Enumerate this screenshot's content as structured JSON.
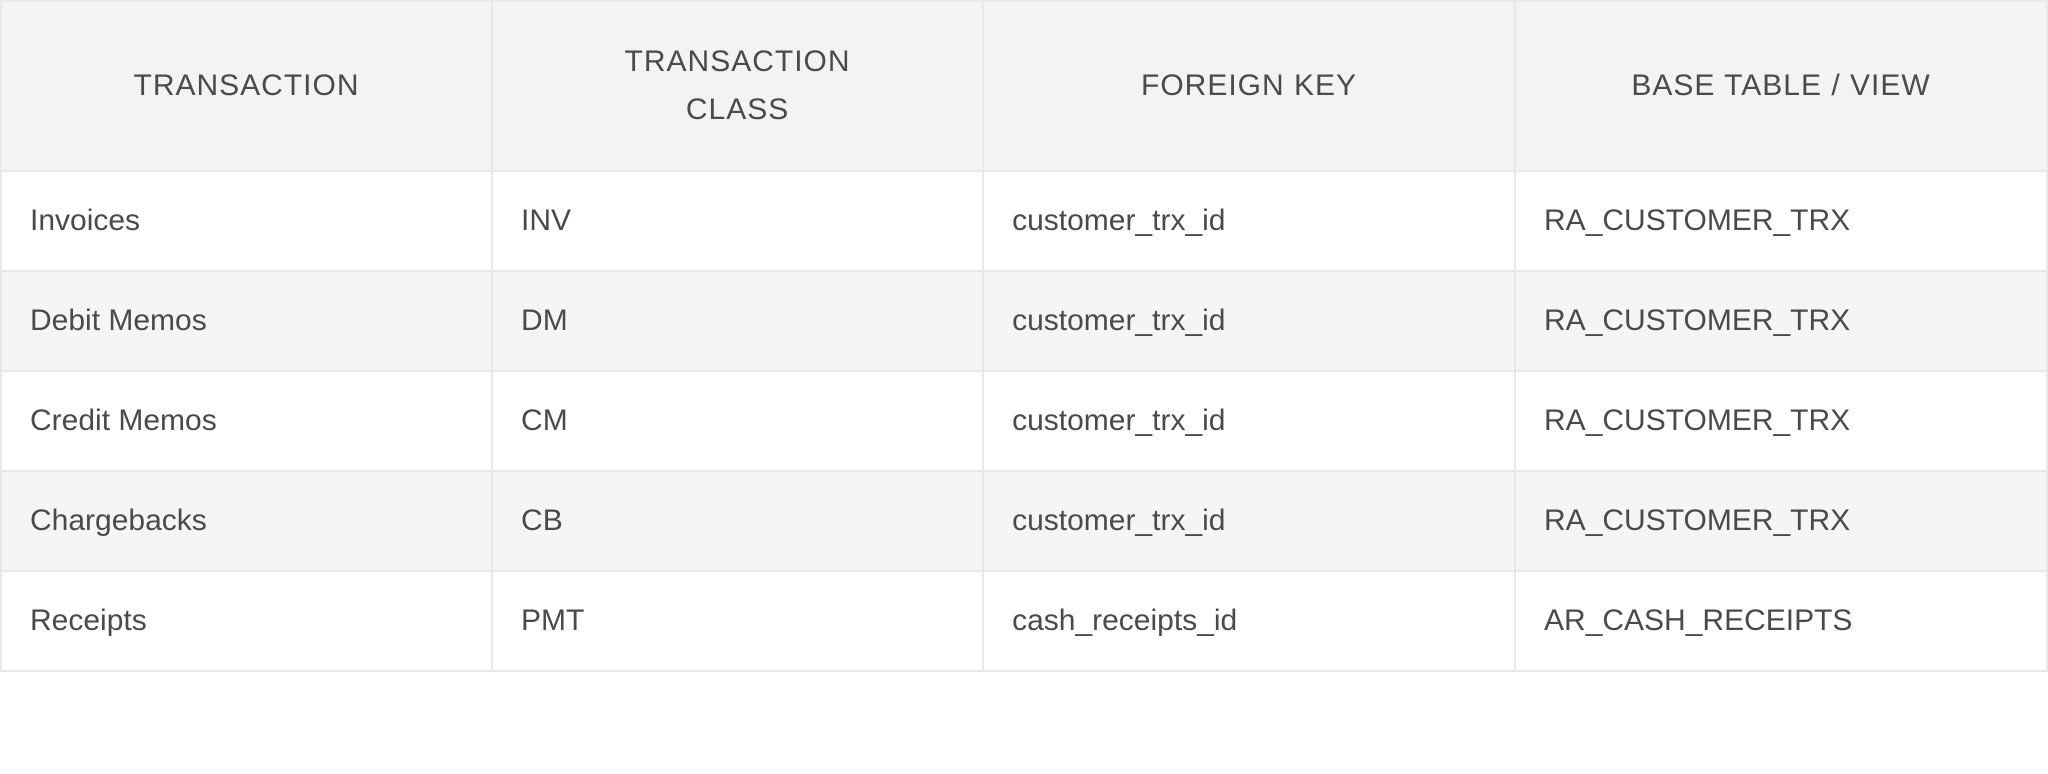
{
  "table": {
    "type": "table",
    "background_color": "#ffffff",
    "header_background": "#f3f3f3",
    "row_alt_background": "#f5f5f5",
    "border_color": "#e8e8e8",
    "text_color": "#4a4a4a",
    "header_fontsize": 30,
    "cell_fontsize": 30,
    "columns": [
      {
        "label": "TRANSACTION",
        "width_pct": 24,
        "align": "center"
      },
      {
        "label": "TRANSACTION CLASS",
        "width_pct": 24,
        "align": "center"
      },
      {
        "label": "FOREIGN KEY",
        "width_pct": 26,
        "align": "center"
      },
      {
        "label": "BASE TABLE / VIEW",
        "width_pct": 26,
        "align": "center"
      }
    ],
    "rows": [
      {
        "transaction": "Invoices",
        "class": "INV",
        "foreign_key": "customer_trx_id",
        "base_table": "RA_CUSTOMER_TRX"
      },
      {
        "transaction": "Debit Memos",
        "class": "DM",
        "foreign_key": "customer_trx_id",
        "base_table": "RA_CUSTOMER_TRX"
      },
      {
        "transaction": "Credit Memos",
        "class": "CM",
        "foreign_key": "customer_trx_id",
        "base_table": "RA_CUSTOMER_TRX"
      },
      {
        "transaction": "Chargebacks",
        "class": "CB",
        "foreign_key": "customer_trx_id",
        "base_table": "RA_CUSTOMER_TRX"
      },
      {
        "transaction": "Receipts",
        "class": "PMT",
        "foreign_key": "cash_receipts_id",
        "base_table": "AR_CASH_RECEIPTS"
      }
    ]
  }
}
